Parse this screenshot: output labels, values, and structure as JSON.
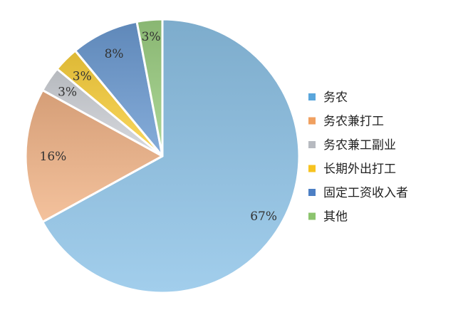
{
  "chart_data": {
    "type": "pie",
    "categories": [
      "务农",
      "务农兼打工",
      "务农兼工副业",
      "长期外出打工",
      "固定工资收入者",
      "其他"
    ],
    "values": [
      67,
      16,
      3,
      3,
      8,
      3
    ],
    "data_labels": [
      "67%",
      "16%",
      "3%",
      "3%",
      "8%",
      "3%"
    ],
    "colors": [
      "#8ec3e8",
      "#f2b487",
      "#cfd2d8",
      "#fbd13c",
      "#6c9bd2",
      "#9ccf82"
    ],
    "legend_colors": [
      "#5aa6dc",
      "#f0a060",
      "#b7bac0",
      "#f7c320",
      "#4c7fc4",
      "#8cc46e"
    ],
    "start_angle_deg": 0,
    "direction": "clockwise",
    "legend_position": "right"
  }
}
